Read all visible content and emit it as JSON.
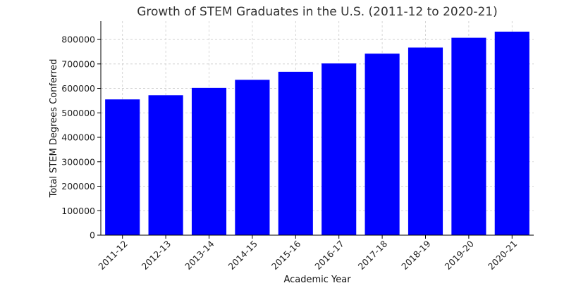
{
  "chart_data": {
    "type": "bar",
    "title": "Growth of STEM Graduates in the U.S. (2011-12 to 2020-21)",
    "xlabel": "Academic Year",
    "ylabel": "Total STEM Degrees Conferred",
    "categories": [
      "2011-12",
      "2012-13",
      "2013-14",
      "2014-15",
      "2015-16",
      "2016-17",
      "2017-18",
      "2018-19",
      "2019-20",
      "2020-21"
    ],
    "values": [
      555000,
      572000,
      602000,
      635000,
      668000,
      702000,
      742000,
      767000,
      807000,
      832000
    ],
    "ylim": [
      0,
      875000
    ],
    "yticks": [
      0,
      100000,
      200000,
      300000,
      400000,
      500000,
      600000,
      700000,
      800000
    ],
    "bar_color": "#0000ff",
    "grid": true,
    "legend": null
  }
}
